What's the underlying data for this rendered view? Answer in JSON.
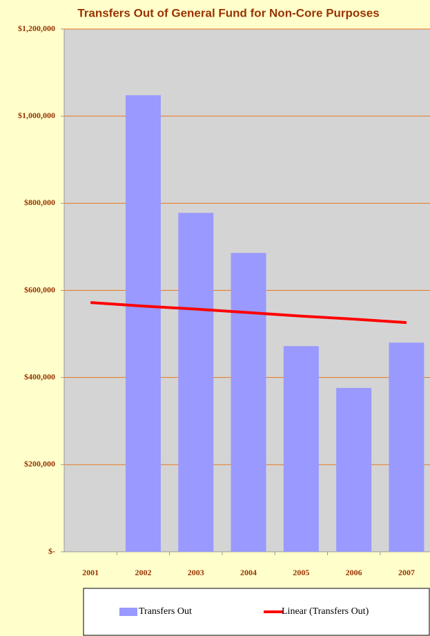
{
  "chart_data": {
    "type": "bar",
    "title": "Transfers Out of General Fund for Non-Core Purposes",
    "categories": [
      "2001",
      "2002",
      "2003",
      "2004",
      "2005",
      "2006",
      "2007"
    ],
    "series": [
      {
        "name": "Transfers Out",
        "type": "bar",
        "color": "#9999ff",
        "values": [
          0,
          1048000,
          778000,
          686000,
          472000,
          376000,
          480000
        ]
      },
      {
        "name": "Linear (Transfers Out)",
        "type": "line",
        "color": "#ff0000",
        "values": [
          572000,
          564000,
          557000,
          549000,
          541000,
          534000,
          526000
        ]
      }
    ],
    "ylim": [
      0,
      1200000
    ],
    "yticks": [
      {
        "value": 0,
        "label": "$-"
      },
      {
        "value": 200000,
        "label": "$200,000"
      },
      {
        "value": 400000,
        "label": "$400,000"
      },
      {
        "value": 600000,
        "label": "$600,000"
      },
      {
        "value": 800000,
        "label": "$800,000"
      },
      {
        "value": 1000000,
        "label": "$1,000,000"
      },
      {
        "value": 1200000,
        "label": "$1,200,000"
      }
    ],
    "grid": true
  }
}
